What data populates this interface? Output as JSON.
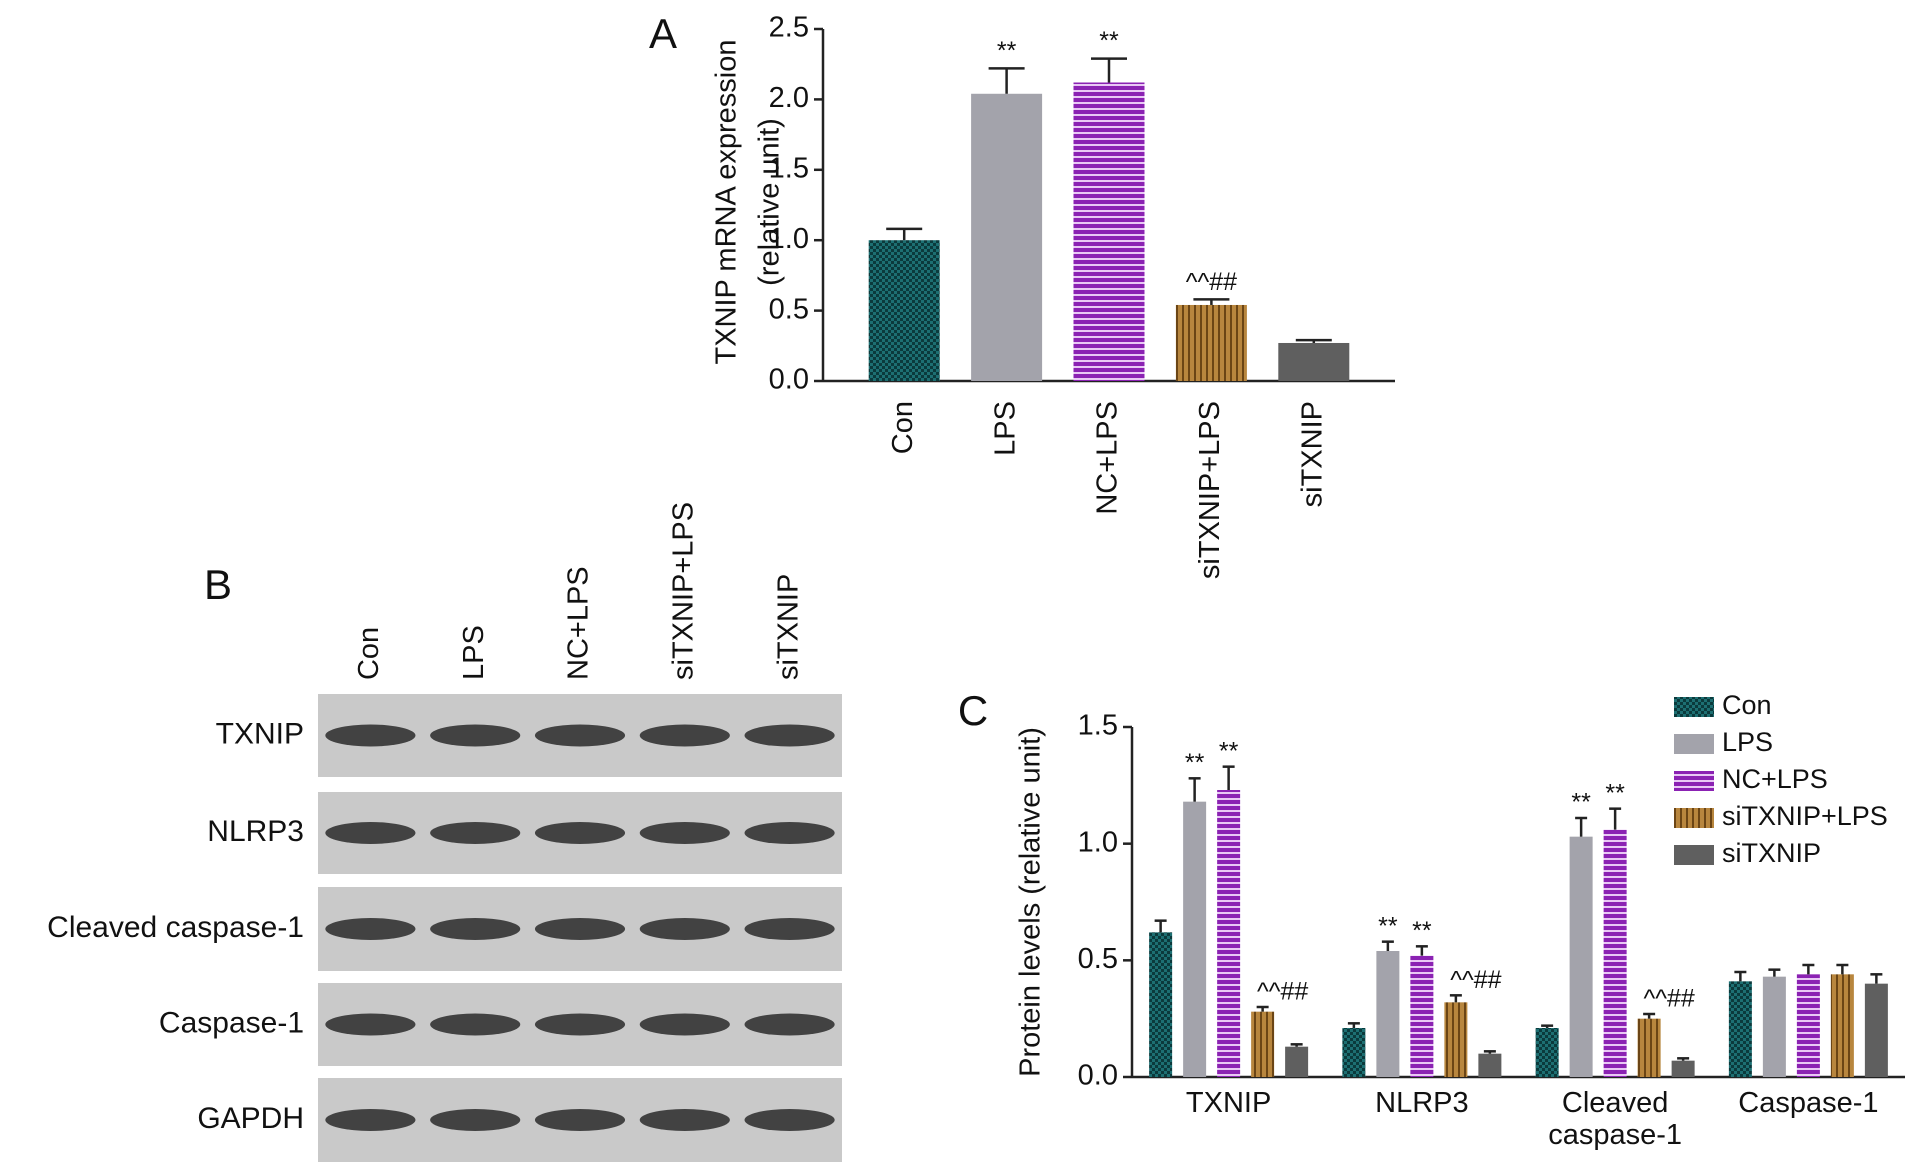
{
  "chart_data": [
    {
      "type": "bar",
      "panel": "A",
      "ylabel": [
        "TXNIP mRNA expression",
        "(relative unit)"
      ],
      "categories": [
        "Con",
        "LPS",
        "NC+LPS",
        "siTXNIP+LPS",
        "siTXNIP"
      ],
      "values": [
        1.0,
        2.04,
        2.12,
        0.54,
        0.27
      ],
      "errors": [
        0.08,
        0.18,
        0.17,
        0.04,
        0.02
      ],
      "value_annotations": [
        null,
        "**",
        "**",
        "^^##",
        null
      ],
      "colors": [
        "#1d6f72",
        "#a3a3ab",
        "#8b22b3",
        "#b8863e",
        "#5f5f5f"
      ],
      "patterns": [
        "checker",
        "none",
        "horizontal",
        "vertical",
        "none"
      ],
      "ylim": [
        0,
        2.5
      ],
      "yticks": [
        {
          "value": 0,
          "label": "0.0"
        },
        0.5,
        {
          "value": 1,
          "label": "1.0"
        },
        1.5,
        {
          "value": 2,
          "label": "2.0"
        },
        2.5
      ]
    },
    {
      "type": "grouped_bar",
      "panel": "C",
      "ylabel": "Protein levels (relative unit)",
      "categories": [
        "TXNIP",
        "NLRP3",
        "Cleaved caspase-1",
        "Caspase-1"
      ],
      "series": [
        {
          "name": "Con",
          "color": "#1d6f72",
          "pattern": "checker",
          "values": [
            0.62,
            0.21,
            0.21,
            0.41
          ],
          "errors": [
            0.05,
            0.02,
            0.01,
            0.04
          ],
          "value_annotations": [
            null,
            null,
            null,
            null
          ]
        },
        {
          "name": "LPS",
          "color": "#a3a3ab",
          "pattern": "none",
          "values": [
            1.18,
            0.54,
            1.03,
            0.43
          ],
          "errors": [
            0.1,
            0.04,
            0.08,
            0.03
          ],
          "value_annotations": [
            "**",
            "**",
            "**",
            null
          ]
        },
        {
          "name": "NC+LPS",
          "color": "#8b22b3",
          "pattern": "horizontal",
          "values": [
            1.23,
            0.52,
            1.06,
            0.44
          ],
          "errors": [
            0.1,
            0.04,
            0.09,
            0.04
          ],
          "value_annotations": [
            "**",
            "**",
            "**",
            null
          ]
        },
        {
          "name": "siTXNIP+LPS",
          "color": "#b8863e",
          "pattern": "vertical",
          "values": [
            0.28,
            0.32,
            0.25,
            0.44
          ],
          "errors": [
            0.02,
            0.03,
            0.02,
            0.04
          ],
          "value_annotations": [
            "^^##",
            "^^##",
            "^^##",
            null
          ]
        },
        {
          "name": "siTXNIP",
          "color": "#5f5f5f",
          "pattern": "none",
          "values": [
            0.13,
            0.1,
            0.07,
            0.4
          ],
          "errors": [
            0.01,
            0.01,
            0.01,
            0.04
          ],
          "value_annotations": [
            null,
            null,
            null,
            null
          ]
        }
      ],
      "ylim": [
        0,
        1.5
      ],
      "yticks": [
        {
          "value": 0,
          "label": "0.0"
        },
        0.5,
        {
          "value": 1,
          "label": "1.0"
        },
        1.5
      ],
      "legend": "upper right"
    }
  ],
  "blot": {
    "panel": "B",
    "lanes": [
      "Con",
      "LPS",
      "NC+LPS",
      "siTXNIP+LPS",
      "siTXNIP"
    ],
    "rows": [
      "TXNIP",
      "NLRP3",
      "Cleaved caspase-1",
      "Caspase-1",
      "GAPDH"
    ]
  }
}
